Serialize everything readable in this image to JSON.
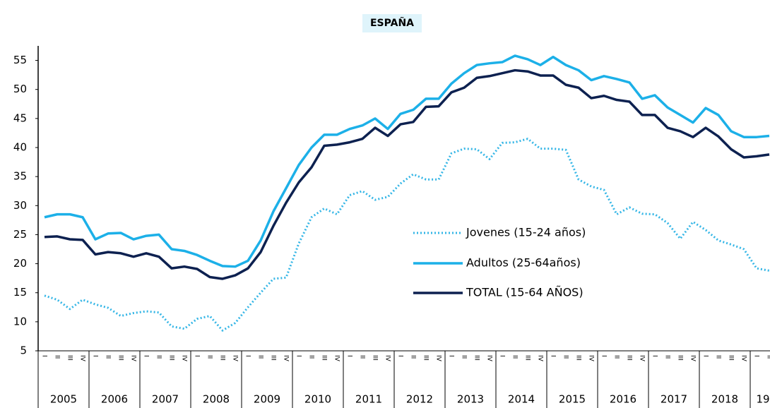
{
  "chart_data": {
    "type": "line",
    "title": "ESPAÑA",
    "categories": [
      "I",
      "II",
      "III",
      "IV",
      "I",
      "II",
      "III",
      "IV",
      "I",
      "II",
      "III",
      "IV",
      "I",
      "II",
      "III",
      "IV",
      "I",
      "II",
      "III",
      "IV",
      "I",
      "II",
      "III",
      "IV",
      "I",
      "II",
      "III",
      "IV",
      "I",
      "II",
      "III",
      "IV",
      "I",
      "II",
      "III",
      "IV",
      "I",
      "II",
      "III",
      "IV",
      "I",
      "II",
      "III",
      "IV",
      "I",
      "II",
      "III",
      "IV",
      "I",
      "II",
      "III",
      "IV",
      "I",
      "II",
      "III",
      "IV",
      "I",
      "II"
    ],
    "years": [
      "2005",
      "2006",
      "2007",
      "2008",
      "2009",
      "2010",
      "2011",
      "2012",
      "2013",
      "2014",
      "2015",
      "2016",
      "2017",
      "2018",
      "19"
    ],
    "series": [
      {
        "name": "Jovenes (15-24 años)",
        "color": "#35b6e6",
        "style": "dotted",
        "values": [
          14.5,
          13.8,
          12.2,
          13.8,
          13,
          12.4,
          11,
          11.5,
          11.8,
          11.6,
          9.2,
          8.8,
          10.5,
          11,
          8.5,
          9.8,
          12.5,
          15,
          17.4,
          17.6,
          23.5,
          28,
          29.5,
          28.5,
          31.8,
          32.5,
          31,
          31.5,
          33.8,
          35.4,
          34.5,
          34.5,
          39,
          39.8,
          39.7,
          38,
          40.8,
          40.9,
          41.5,
          39.8,
          39.8,
          39.6,
          34.5,
          33.3,
          32.7,
          28.5,
          29.7,
          28.6,
          28.5,
          27,
          24.3,
          27.2,
          25.8,
          24,
          23.3,
          22.5,
          19.2,
          18.8
        ]
      },
      {
        "name": "Adultos (25-64años)",
        "color": "#1cb0e8",
        "style": "solid",
        "values": [
          28,
          28.5,
          28.5,
          28,
          24.2,
          25.2,
          25.3,
          24.2,
          24.8,
          25,
          22.5,
          22.2,
          21.5,
          20.5,
          19.6,
          19.5,
          20.5,
          24,
          29,
          33,
          37,
          40,
          42.2,
          42.2,
          43.2,
          43.8,
          45,
          43.2,
          45.8,
          46.5,
          48.4,
          48.4,
          51,
          52.8,
          54.2,
          54.5,
          54.7,
          55.8,
          55.2,
          54.2,
          55.6,
          54.2,
          53.3,
          51.6,
          52.3,
          51.8,
          51.2,
          48.4,
          49,
          46.9,
          45.6,
          44.3,
          46.8,
          45.6,
          42.8,
          41.8,
          41.8,
          42
        ]
      },
      {
        "name": "TOTAL (15-64 AÑOS)",
        "color": "#0d2150",
        "style": "solid",
        "values": [
          24.6,
          24.7,
          24.2,
          24.1,
          21.6,
          22,
          21.8,
          21.2,
          21.8,
          21.2,
          19.2,
          19.5,
          19.1,
          17.7,
          17.4,
          18,
          19.2,
          22,
          26.5,
          30.5,
          34,
          36.6,
          40.3,
          40.5,
          40.9,
          41.5,
          43.4,
          42,
          44,
          44.4,
          47,
          47.1,
          49.5,
          50.3,
          52,
          52.3,
          52.8,
          53.3,
          53.1,
          52.4,
          52.4,
          50.8,
          50.3,
          48.5,
          48.9,
          48.2,
          47.9,
          45.6,
          45.6,
          43.4,
          42.8,
          41.8,
          43.4,
          41.9,
          39.7,
          38.3,
          38.5,
          38.8
        ]
      }
    ],
    "ylim": [
      5,
      57.5
    ],
    "yticks": [
      5,
      10,
      15,
      20,
      25,
      30,
      35,
      40,
      45,
      50,
      55
    ],
    "legend": "center-right"
  }
}
